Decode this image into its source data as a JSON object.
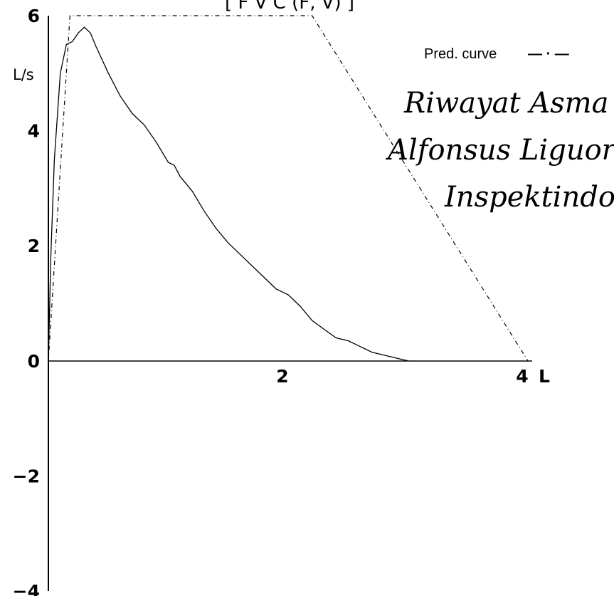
{
  "chart_data": {
    "type": "line",
    "title_fragment": "[ F V C (F, V) ]",
    "ylabel": "L/s",
    "xlabel": "L",
    "xlim": [
      0,
      4
    ],
    "ylim": [
      -4,
      6
    ],
    "x_ticks": [
      {
        "value": 2,
        "label": "2"
      },
      {
        "value": 4,
        "label": "4"
      }
    ],
    "y_ticks": [
      {
        "value": 6,
        "label": "6"
      },
      {
        "value": 4,
        "label": "4"
      },
      {
        "value": 2,
        "label": "2"
      },
      {
        "value": 0,
        "label": "0"
      },
      {
        "value": -2,
        "label": "−2"
      },
      {
        "value": -4,
        "label": "−4"
      }
    ],
    "series": [
      {
        "style": "solid",
        "x": [
          0,
          0.02,
          0.05,
          0.1,
          0.15,
          0.2,
          0.25,
          0.3,
          0.35,
          0.4,
          0.5,
          0.6,
          0.7,
          0.8,
          0.9,
          1.0,
          1.05,
          1.1,
          1.2,
          1.3,
          1.4,
          1.5,
          1.6,
          1.7,
          1.8,
          1.9,
          2.0,
          2.1,
          2.2,
          2.3,
          2.4,
          2.5,
          2.6,
          2.7,
          2.8,
          2.9,
          3.0
        ],
        "y": [
          0,
          1.8,
          3.5,
          5.0,
          5.5,
          5.55,
          5.7,
          5.8,
          5.7,
          5.45,
          5.0,
          4.6,
          4.3,
          4.1,
          3.8,
          3.45,
          3.4,
          3.2,
          2.95,
          2.6,
          2.3,
          2.05,
          1.85,
          1.65,
          1.45,
          1.25,
          1.15,
          0.95,
          0.7,
          0.55,
          0.4,
          0.35,
          0.25,
          0.15,
          0.1,
          0.05,
          0.0
        ]
      },
      {
        "name": "Pred. curve",
        "style": "dash-dot",
        "x": [
          0,
          0.18,
          2.2,
          4.0
        ],
        "y": [
          0,
          6.0,
          6.0,
          0
        ]
      }
    ],
    "legend": {
      "label": "Pred. curve",
      "symbol": "— · —",
      "position": "top-right"
    },
    "handwritten_notes": [
      "Riwayat Asma",
      "Alfonsus Liguori",
      "Inspektindo."
    ]
  }
}
